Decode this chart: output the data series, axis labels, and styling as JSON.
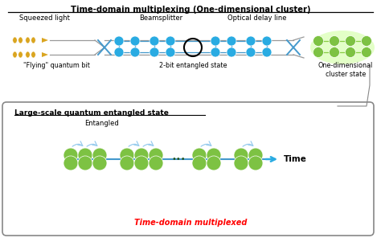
{
  "title": "Time-domain multiplexing (One-dimensional cluster)",
  "bg_color": "#ffffff",
  "top_labels": [
    "Squeezed light",
    "Beamsplitter",
    "Optical delay line"
  ],
  "bottom_labels_top": [
    "\"Flying\" quantum bit",
    "2-bit entangled state",
    "One-dimensional\ncluster state"
  ],
  "lower_box_title": "Large-scale quantum entangled state",
  "lower_label_entangled": "Entangled",
  "lower_label_time": "Time",
  "lower_footer": "Time-domain multiplexed",
  "gold_color": "#DAA520",
  "blue_node_color": "#29ABE2",
  "green_node_color": "#7DC243",
  "green_light_color": "#AEDD6E",
  "arrow_color": "#29ABE2",
  "line_color": "#888888"
}
